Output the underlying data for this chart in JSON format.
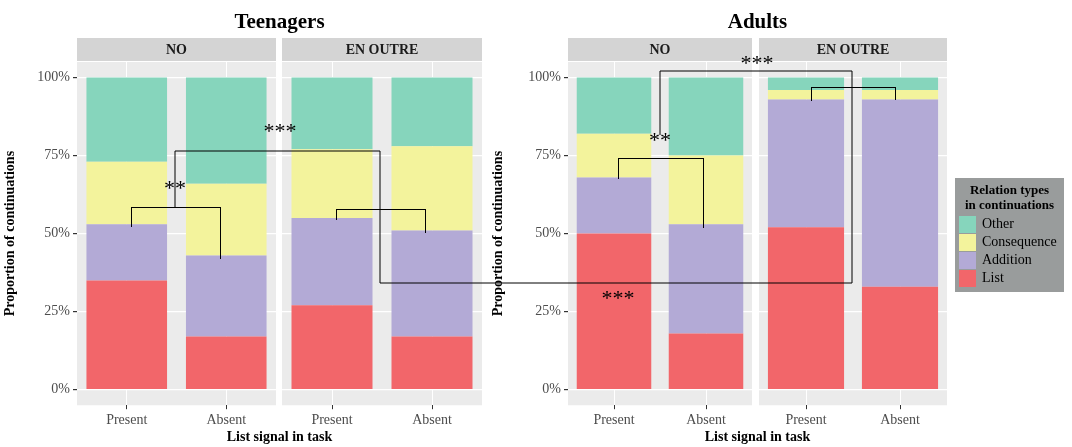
{
  "chart_data": [
    {
      "type": "bar",
      "title": "Teenagers",
      "subtitle": "NO",
      "xlabel": "List signal in task",
      "ylabel": "Proportion of continuations",
      "categories": [
        "Present",
        "Absent"
      ],
      "stacked": true,
      "grid": true,
      "ylim": [
        -5,
        105
      ],
      "legend": "right",
      "legend_title": "Relation types\nin continuations",
      "yticks": [
        {
          "value": 0,
          "label": "0%"
        },
        {
          "value": 25,
          "label": "25%"
        },
        {
          "value": 50,
          "label": "50%"
        },
        {
          "value": 75,
          "label": "75%"
        },
        {
          "value": 100,
          "label": "100%"
        }
      ],
      "series": [
        {
          "name": "List",
          "color": "#f2666a",
          "values": [
            35,
            17
          ]
        },
        {
          "name": "Addition",
          "color": "#b3aad6",
          "values": [
            18,
            26
          ]
        },
        {
          "name": "Consequence",
          "color": "#f3f39c",
          "values": [
            20,
            23
          ]
        },
        {
          "name": "Other",
          "color": "#86d5bc",
          "values": [
            27,
            34
          ]
        }
      ],
      "annotations": [
        "**",
        "***"
      ]
    },
    {
      "type": "bar",
      "subtitle": "EN OUTRE",
      "categories": [
        "Present",
        "Absent"
      ],
      "stacked": true,
      "grid": true,
      "tick_labels": "x",
      "ylim": [
        -5,
        105
      ],
      "yticks": [
        {
          "value": 0,
          "label": null
        },
        {
          "value": 25,
          "label": null
        },
        {
          "value": 50,
          "label": null
        },
        {
          "value": 75,
          "label": null
        },
        {
          "value": 100,
          "label": null
        }
      ],
      "series": [
        {
          "color": "#f2666a",
          "values": [
            27,
            17
          ]
        },
        {
          "color": "#b3aad6",
          "values": [
            28,
            34
          ]
        },
        {
          "color": "#f3f39c",
          "values": [
            22,
            27
          ]
        },
        {
          "color": "#86d5bc",
          "values": [
            23,
            22
          ]
        }
      ]
    },
    {
      "type": "bar",
      "title": "Adults",
      "subtitle": "NO",
      "xlabel": "List signal in task",
      "ylabel": "Proportion of continuations",
      "categories": [
        "Present",
        "Absent"
      ],
      "stacked": true,
      "grid": true,
      "ylim": [
        -5,
        105
      ],
      "yticks": [
        {
          "value": 0,
          "label": "0%"
        },
        {
          "value": 25,
          "label": "25%"
        },
        {
          "value": 50,
          "label": "50%"
        },
        {
          "value": 75,
          "label": "75%"
        },
        {
          "value": 100,
          "label": "100%"
        }
      ],
      "series": [
        {
          "color": "#f2666a",
          "values": [
            50,
            18
          ]
        },
        {
          "color": "#b3aad6",
          "values": [
            18,
            35
          ]
        },
        {
          "color": "#f3f39c",
          "values": [
            14,
            22
          ]
        },
        {
          "color": "#86d5bc",
          "values": [
            18,
            25
          ]
        }
      ],
      "annotations": [
        "**",
        "***",
        "***"
      ]
    },
    {
      "type": "bar",
      "subtitle": "EN OUTRE",
      "categories": [
        "Present",
        "Absent"
      ],
      "stacked": true,
      "grid": true,
      "tick_labels": "x",
      "ylim": [
        -5,
        105
      ],
      "yticks": [
        {
          "value": 0,
          "label": null
        },
        {
          "value": 25,
          "label": null
        },
        {
          "value": 50,
          "label": null
        },
        {
          "value": 75,
          "label": null
        },
        {
          "value": 100,
          "label": null
        }
      ],
      "series": [
        {
          "color": "#f2666a",
          "values": [
            52,
            33
          ]
        },
        {
          "color": "#b3aad6",
          "values": [
            41,
            60
          ]
        },
        {
          "color": "#f3f39c",
          "values": [
            3,
            3
          ]
        },
        {
          "color": "#86d5bc",
          "values": [
            4,
            4
          ]
        }
      ]
    }
  ]
}
